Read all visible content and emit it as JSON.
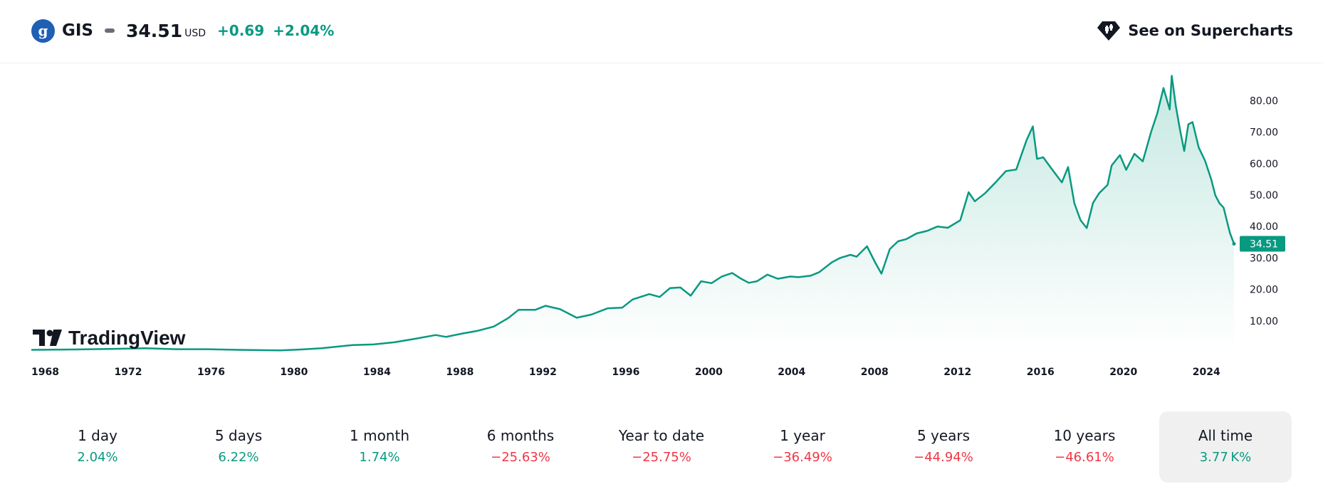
{
  "header": {
    "ticker": "GIS",
    "price": "34.51",
    "currency": "USD",
    "change": "+0.69",
    "change_pct": "+2.04%",
    "supercharts_label": "See on Supercharts",
    "logo_glyph": "g"
  },
  "brand": {
    "name": "TradingView"
  },
  "colors": {
    "line": "#089981",
    "area_top": "#c5e8e1",
    "area_bottom": "#ffffff",
    "price_label_bg": "#089981",
    "positive": "#089981",
    "negative": "#f23645"
  },
  "chart_data": {
    "type": "area",
    "title": "",
    "xlabel": "",
    "ylabel": "",
    "xlim": [
      1968,
      2026.0
    ],
    "ylim": [
      0,
      90
    ],
    "x_ticks": [
      "1968",
      "1972",
      "1976",
      "1980",
      "1984",
      "1988",
      "1992",
      "1996",
      "2000",
      "2004",
      "2008",
      "2012",
      "2016",
      "2020",
      "2024"
    ],
    "y_ticks": [
      "10.00",
      "20.00",
      "30.00",
      "40.00",
      "50.00",
      "60.00",
      "70.00",
      "80.00"
    ],
    "y_axis_side": "right",
    "grid": false,
    "last_price": 34.51,
    "last_price_label": "34.51",
    "series": [
      {
        "x": [
          1968.0,
          1970.0,
          1972.0,
          1973.5,
          1975.0,
          1976.5,
          1978.0,
          1980.0,
          1981.0,
          1982.0,
          1983.5,
          1984.5,
          1985.5,
          1986.5,
          1987.5,
          1988.0,
          1988.8,
          1989.5,
          1990.3,
          1991.0,
          1991.5,
          1992.3,
          1992.8,
          1993.5,
          1994.3,
          1995.0,
          1995.8,
          1996.5,
          1997.0,
          1997.8,
          1998.3,
          1998.8,
          1999.3,
          1999.8,
          2000.3,
          2000.8,
          2001.3,
          2001.8,
          2002.2,
          2002.6,
          2003.0,
          2003.5,
          2004.0,
          2004.6,
          2005.0,
          2005.6,
          2006.0,
          2006.6,
          2007.0,
          2007.5,
          2007.8,
          2008.3,
          2008.7,
          2009.0,
          2009.4,
          2009.8,
          2010.2,
          2010.7,
          2011.2,
          2011.7,
          2012.2,
          2012.8,
          2013.2,
          2013.5,
          2014.0,
          2014.5,
          2015.0,
          2015.5,
          2016.0,
          2016.3,
          2016.5,
          2016.8,
          2017.2,
          2017.7,
          2018.0,
          2018.3,
          2018.6,
          2018.9,
          2019.2,
          2019.5,
          2019.9,
          2020.1,
          2020.5,
          2020.8,
          2021.2,
          2021.6,
          2022.0,
          2022.3,
          2022.6,
          2022.9,
          2023.0,
          2023.2,
          2023.4,
          2023.6,
          2023.8,
          2024.0,
          2024.3,
          2024.6,
          2024.9,
          2025.1,
          2025.3,
          2025.5,
          2025.8,
          2026.0
        ],
        "y": [
          0.8,
          0.9,
          1.1,
          1.3,
          1.0,
          1.0,
          0.8,
          0.6,
          0.9,
          1.3,
          2.3,
          2.5,
          3.2,
          4.3,
          5.5,
          4.9,
          6.0,
          6.8,
          8.2,
          10.9,
          13.5,
          13.5,
          14.8,
          13.7,
          11.0,
          12.0,
          14.0,
          14.2,
          16.8,
          18.5,
          17.6,
          20.4,
          20.6,
          18.0,
          22.6,
          22.0,
          24.1,
          25.2,
          23.5,
          22.1,
          22.6,
          24.7,
          23.4,
          24.1,
          23.9,
          24.4,
          25.5,
          28.6,
          30.0,
          31.0,
          30.4,
          33.7,
          28.5,
          25.0,
          32.8,
          35.3,
          36.0,
          37.8,
          38.6,
          40.0,
          39.6,
          42.0,
          50.9,
          48.0,
          50.6,
          54.0,
          57.6,
          58.1,
          67.5,
          71.8,
          61.5,
          62.0,
          58.4,
          54.0,
          58.9,
          47.4,
          42.0,
          39.5,
          47.5,
          50.6,
          53.2,
          59.4,
          62.7,
          58.0,
          63.1,
          60.7,
          70.0,
          76.0,
          84.0,
          77.2,
          87.9,
          78.0,
          70.6,
          64.0,
          72.5,
          73.2,
          65.1,
          61.0,
          55.0,
          49.9,
          47.4,
          46.0,
          38.0,
          34.51
        ]
      }
    ]
  },
  "periods": [
    {
      "label": "1 day",
      "value": "2.04%",
      "sign": "pos"
    },
    {
      "label": "5 days",
      "value": "6.22%",
      "sign": "pos"
    },
    {
      "label": "1 month",
      "value": "1.74%",
      "sign": "pos"
    },
    {
      "label": "6 months",
      "value": "−25.63%",
      "sign": "neg"
    },
    {
      "label": "Year to date",
      "value": "−25.75%",
      "sign": "neg"
    },
    {
      "label": "1 year",
      "value": "−36.49%",
      "sign": "neg"
    },
    {
      "label": "5 years",
      "value": "−44.94%",
      "sign": "neg"
    },
    {
      "label": "10 years",
      "value": "−46.61%",
      "sign": "neg"
    },
    {
      "label": "All time",
      "value": "3.77 K%",
      "sign": "pos",
      "active": true
    }
  ],
  "icons": {
    "ticker_logo": "company-logo-icon",
    "supercharts": "supercharts-icon",
    "brand": "tradingview-logo-icon"
  }
}
